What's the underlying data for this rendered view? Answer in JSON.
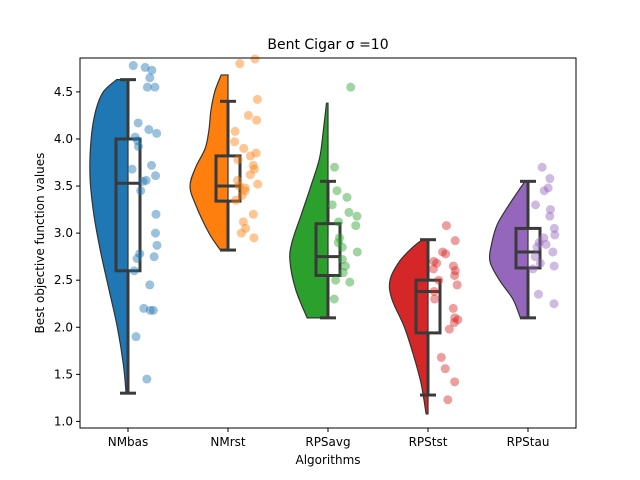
{
  "chart_data": {
    "type": "violin",
    "title": "Bent Cigar σ =10",
    "xlabel": "Algorithms",
    "ylabel": "Best objective function values",
    "categories": [
      "NMbas",
      "NMrst",
      "RPSavg",
      "RPStst",
      "RPStau"
    ],
    "colors": [
      "#1f77b4",
      "#ff7f0e",
      "#2ca02c",
      "#d62728",
      "#9467bd"
    ],
    "ylim": [
      0.93,
      4.86
    ],
    "yticks": [
      1.0,
      1.5,
      2.0,
      2.5,
      3.0,
      3.5,
      4.0,
      4.5
    ],
    "ytick_labels": [
      "1.0",
      "1.5",
      "2.0",
      "2.5",
      "3.0",
      "3.5",
      "4.0",
      "4.5"
    ],
    "grid": false,
    "series": [
      {
        "violin": {
          "min": 1.3,
          "max": 4.63,
          "profile": [
            [
              1.3,
              0.05
            ],
            [
              1.6,
              0.12
            ],
            [
              2.0,
              0.28
            ],
            [
              2.4,
              0.5
            ],
            [
              2.8,
              0.72
            ],
            [
              3.2,
              0.9
            ],
            [
              3.6,
              1.0
            ],
            [
              4.0,
              0.97
            ],
            [
              4.3,
              0.85
            ],
            [
              4.5,
              0.65
            ],
            [
              4.63,
              0.3
            ]
          ]
        },
        "box": {
          "whisker_low": 1.3,
          "q1": 2.6,
          "median": 3.53,
          "q3": 4.0,
          "whisker_high": 4.63
        },
        "points": [
          4.78,
          4.76,
          4.73,
          4.65,
          4.55,
          4.55,
          4.17,
          4.1,
          4.06,
          4.02,
          3.98,
          3.92,
          3.72,
          3.68,
          3.61,
          3.56,
          3.55,
          3.45,
          3.2,
          3.0,
          2.87,
          2.78,
          2.75,
          2.73,
          2.6,
          2.45,
          2.2,
          2.18,
          2.18,
          1.9,
          1.45
        ]
      },
      {
        "violin": {
          "min": 2.82,
          "max": 4.68,
          "profile": [
            [
              2.82,
              0.2
            ],
            [
              3.0,
              0.5
            ],
            [
              3.3,
              0.85
            ],
            [
              3.5,
              1.0
            ],
            [
              3.7,
              0.85
            ],
            [
              3.9,
              0.6
            ],
            [
              4.1,
              0.5
            ],
            [
              4.3,
              0.45
            ],
            [
              4.5,
              0.35
            ],
            [
              4.68,
              0.18
            ]
          ]
        },
        "box": {
          "whisker_low": 2.82,
          "q1": 3.34,
          "median": 3.5,
          "q3": 3.82,
          "whisker_high": 4.4
        },
        "points": [
          4.85,
          4.8,
          4.42,
          4.25,
          4.2,
          4.08,
          3.97,
          3.9,
          3.85,
          3.82,
          3.78,
          3.72,
          3.68,
          3.62,
          3.56,
          3.52,
          3.5,
          3.48,
          3.45,
          3.4,
          3.35,
          3.2,
          3.12,
          3.05,
          3.0,
          2.95
        ]
      },
      {
        "violin": {
          "min": 2.1,
          "max": 4.38,
          "profile": [
            [
              2.1,
              0.55
            ],
            [
              2.4,
              0.85
            ],
            [
              2.7,
              1.0
            ],
            [
              2.9,
              0.95
            ],
            [
              3.2,
              0.7
            ],
            [
              3.5,
              0.45
            ],
            [
              3.8,
              0.22
            ],
            [
              4.1,
              0.12
            ],
            [
              4.38,
              0.04
            ]
          ]
        },
        "box": {
          "whisker_low": 2.1,
          "q1": 2.55,
          "median": 2.75,
          "q3": 3.1,
          "whisker_high": 3.55
        },
        "points": [
          4.55,
          3.7,
          3.45,
          3.38,
          3.3,
          3.22,
          3.18,
          3.12,
          3.08,
          2.95,
          2.9,
          2.85,
          2.8,
          2.72,
          2.65,
          2.58,
          2.5,
          2.48,
          2.3
        ]
      },
      {
        "violin": {
          "min": 1.08,
          "max": 2.93,
          "profile": [
            [
              1.08,
              0.05
            ],
            [
              1.4,
              0.18
            ],
            [
              1.7,
              0.38
            ],
            [
              2.0,
              0.62
            ],
            [
              2.3,
              0.95
            ],
            [
              2.5,
              1.0
            ],
            [
              2.7,
              0.75
            ],
            [
              2.85,
              0.4
            ],
            [
              2.93,
              0.15
            ]
          ]
        },
        "box": {
          "whisker_low": 1.28,
          "q1": 1.94,
          "median": 2.38,
          "q3": 2.5,
          "whisker_high": 2.93
        },
        "points": [
          3.08,
          2.92,
          2.8,
          2.78,
          2.7,
          2.68,
          2.65,
          2.62,
          2.6,
          2.55,
          2.5,
          2.45,
          2.38,
          2.3,
          2.2,
          2.1,
          2.08,
          2.05,
          1.98,
          1.68,
          1.56,
          1.42,
          1.23
        ]
      },
      {
        "violin": {
          "min": 2.1,
          "max": 3.55,
          "profile": [
            [
              2.1,
              0.2
            ],
            [
              2.3,
              0.4
            ],
            [
              2.5,
              0.75
            ],
            [
              2.7,
              1.0
            ],
            [
              2.9,
              0.95
            ],
            [
              3.1,
              0.8
            ],
            [
              3.3,
              0.5
            ],
            [
              3.45,
              0.25
            ],
            [
              3.55,
              0.08
            ]
          ]
        },
        "box": {
          "whisker_low": 2.1,
          "q1": 2.63,
          "median": 2.8,
          "q3": 3.05,
          "whisker_high": 3.55
        },
        "points": [
          3.7,
          3.58,
          3.48,
          3.45,
          3.3,
          3.25,
          3.18,
          3.05,
          2.98,
          2.95,
          2.9,
          2.88,
          2.85,
          2.8,
          2.75,
          2.68,
          2.65,
          2.62,
          2.35,
          2.25
        ]
      }
    ]
  }
}
